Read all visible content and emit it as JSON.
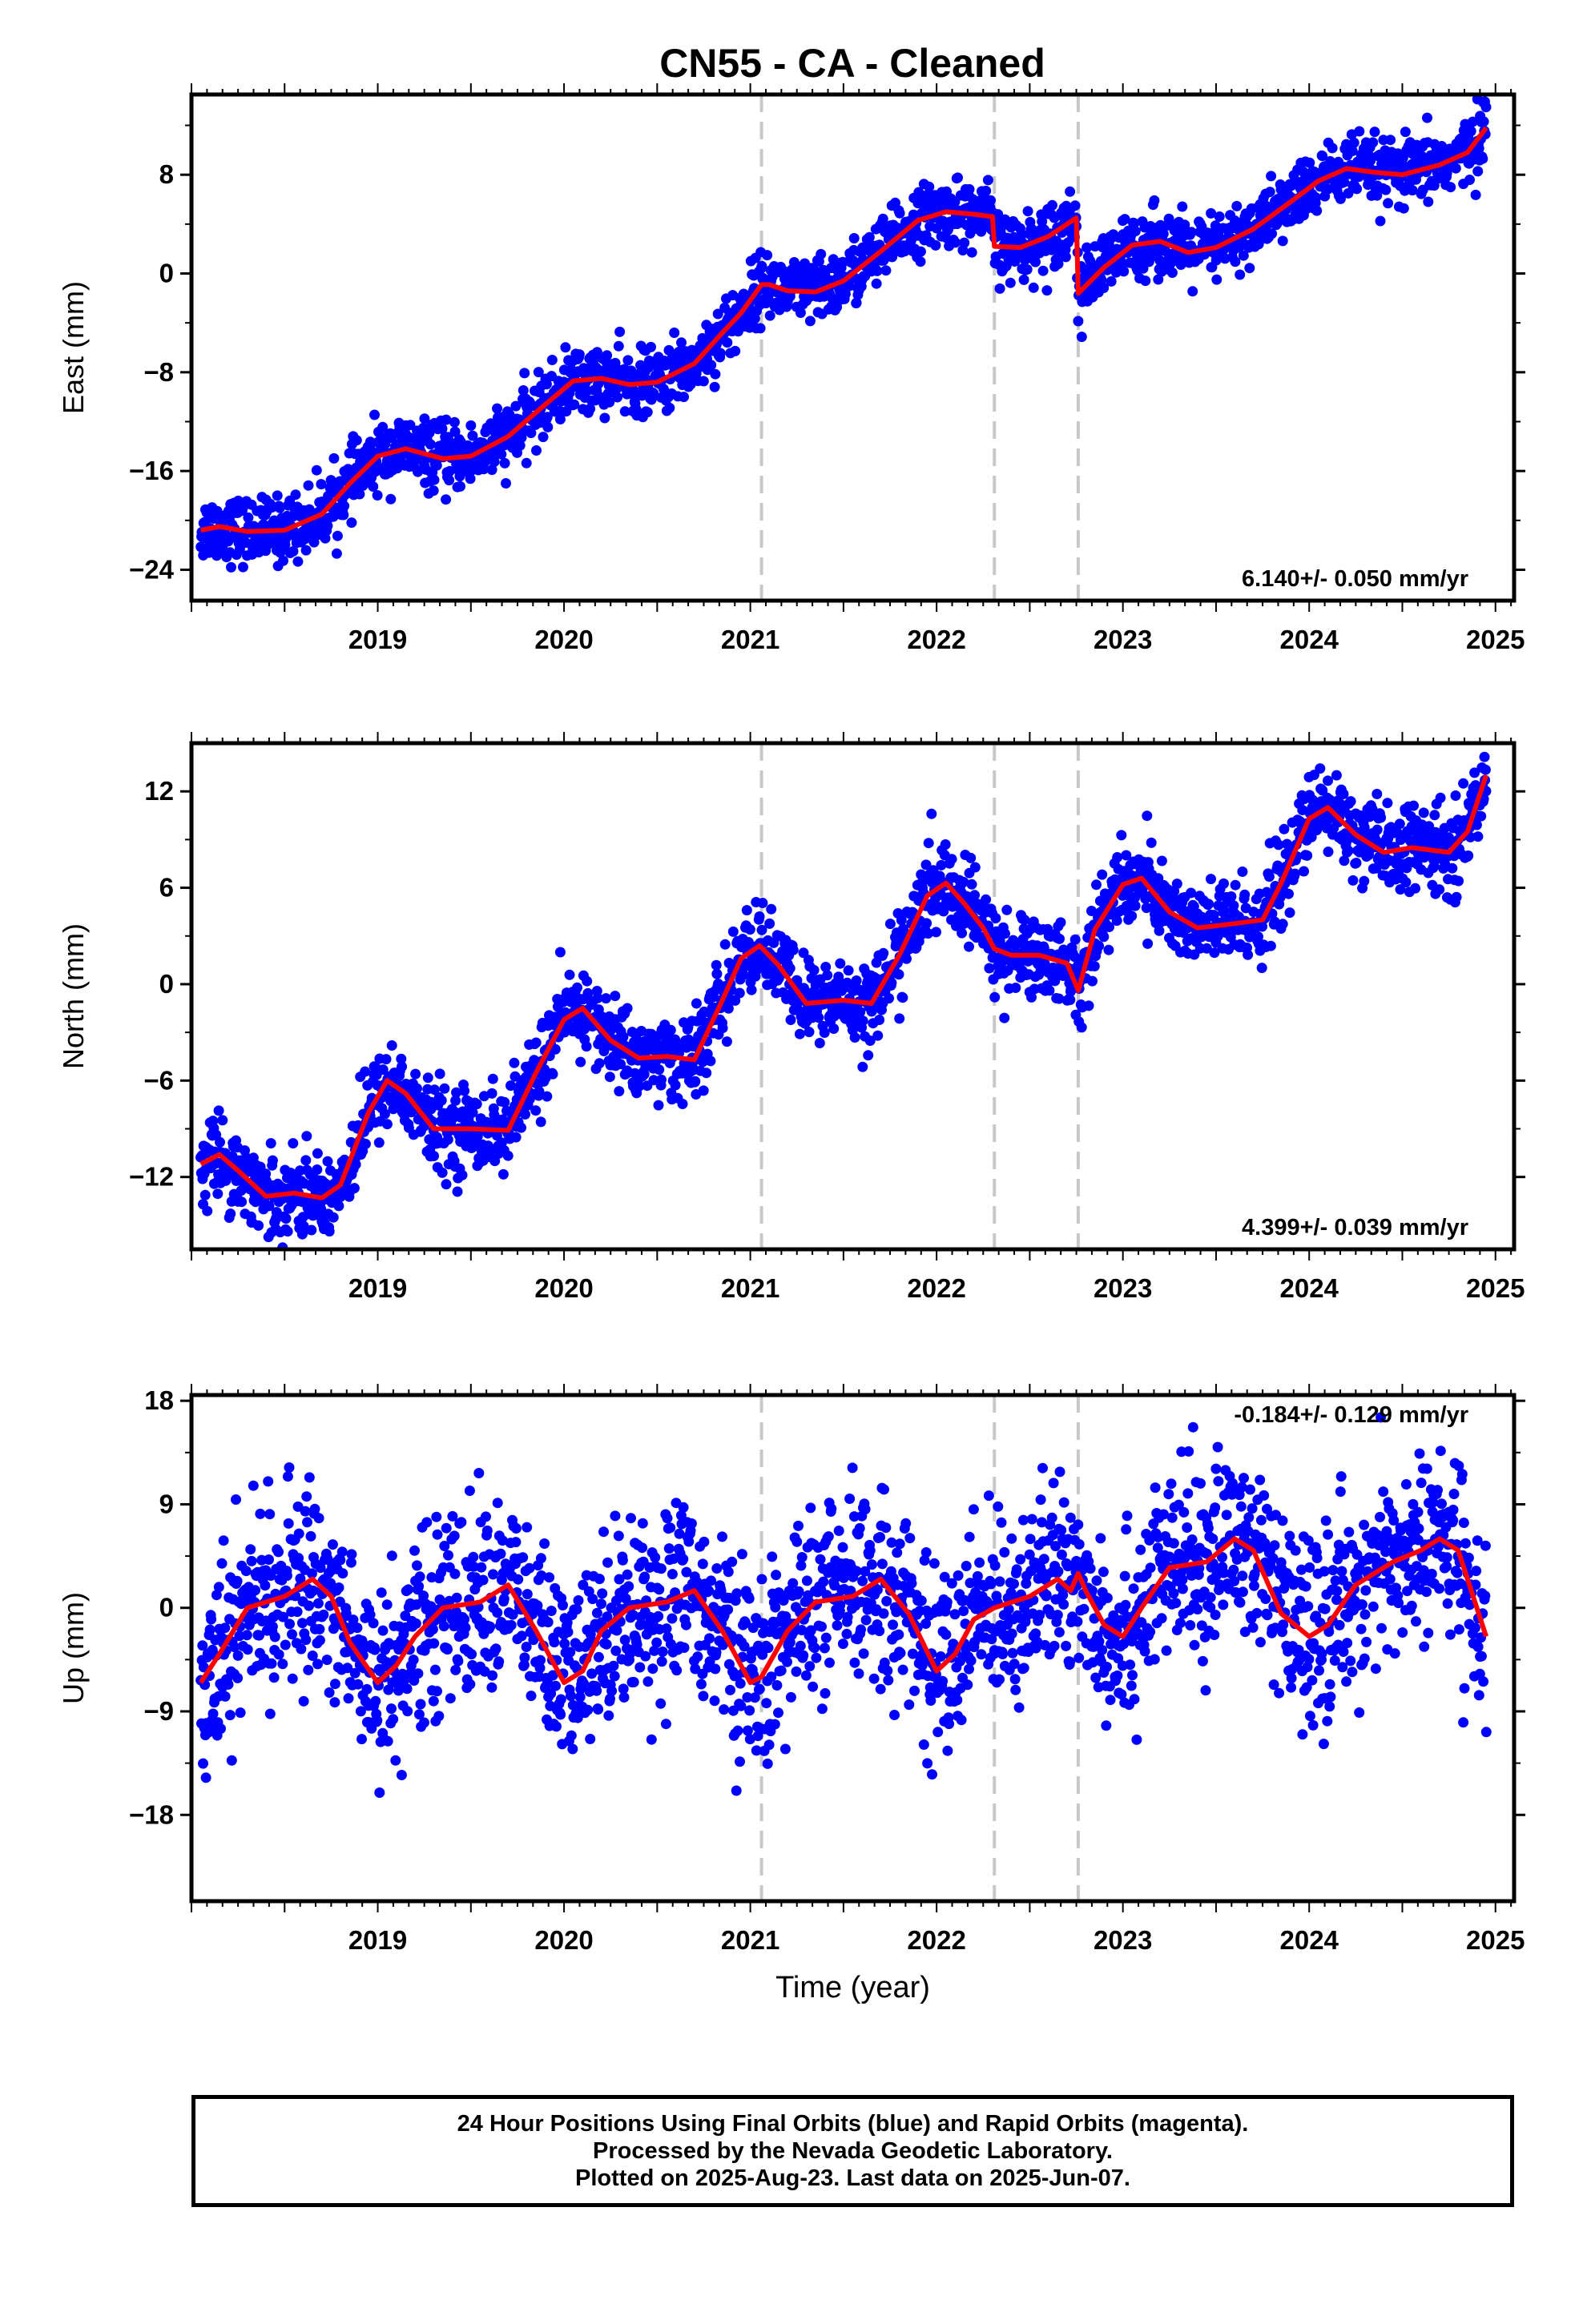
{
  "title": "CN55  - CA - Cleaned",
  "colors": {
    "data": "#0000ff",
    "model": "#ff0000",
    "steps": "#c8c8c8",
    "frame": "#000000"
  },
  "chart_data": [
    {
      "type": "scatter",
      "component": "east",
      "ylabel": "East (mm)",
      "xlabel": "",
      "rate": "6.140+/- 0.050 mm/yr",
      "rate_position": "bottom-right",
      "xlim": [
        2018.5,
        2025.6
      ],
      "ylim": [
        -26.5,
        14.5
      ],
      "yticks": [
        -24,
        -16,
        -8,
        0,
        8
      ],
      "xticks": [
        2019,
        2020,
        2021,
        2022,
        2023,
        2024,
        2025
      ],
      "tick_labels": [
        "2019",
        "2020",
        "2021",
        "2022",
        "2023",
        "2024",
        "2025"
      ],
      "model": {
        "x": [
          2018.55,
          2018.65,
          2018.8,
          2019.0,
          2019.2,
          2019.35,
          2019.5,
          2019.65,
          2019.85,
          2020.0,
          2020.2,
          2020.4,
          2020.55,
          2020.7,
          2020.85,
          2021.0,
          2021.2,
          2021.35,
          2021.45,
          2021.56,
          2021.6,
          2021.7,
          2021.85,
          2022.0,
          2022.2,
          2022.4,
          2022.55,
          2022.7,
          2022.8,
          2022.81,
          2022.95,
          2023.1,
          2023.25,
          2023.26,
          2023.4,
          2023.55,
          2023.7,
          2023.85,
          2024.0,
          2024.2,
          2024.4,
          2024.55,
          2024.7,
          2024.85,
          2025.0,
          2025.2,
          2025.35,
          2025.45
        ],
        "y": [
          -20.8,
          -20.5,
          -20.9,
          -20.8,
          -19.5,
          -17.0,
          -14.8,
          -14.2,
          -15.0,
          -14.8,
          -13.2,
          -10.6,
          -8.7,
          -8.5,
          -9.0,
          -8.8,
          -7.3,
          -4.8,
          -3.2,
          -0.9,
          -0.9,
          -1.4,
          -1.5,
          -0.6,
          1.8,
          4.3,
          5.0,
          4.8,
          4.6,
          2.2,
          2.1,
          3.0,
          4.5,
          -1.6,
          0.5,
          2.3,
          2.6,
          1.7,
          2.1,
          3.6,
          5.8,
          7.5,
          8.5,
          8.2,
          8.0,
          8.8,
          9.8,
          11.8
        ]
      },
      "steps": [
        2021.56,
        2022.81,
        2023.26
      ],
      "scatter_sigma": 1.3
    },
    {
      "type": "scatter",
      "component": "north",
      "ylabel": "North (mm)",
      "xlabel": "",
      "rate": "4.399+/- 0.039 mm/yr",
      "rate_position": "bottom-right",
      "xlim": [
        2018.5,
        2025.6
      ],
      "ylim": [
        -16.5,
        15
      ],
      "yticks": [
        -12,
        -6,
        0,
        6,
        12
      ],
      "xticks": [
        2019,
        2020,
        2021,
        2022,
        2023,
        2024,
        2025
      ],
      "tick_labels": [
        "2019",
        "2020",
        "2021",
        "2022",
        "2023",
        "2024",
        "2025"
      ],
      "model": {
        "x": [
          2018.55,
          2018.65,
          2018.75,
          2018.9,
          2019.05,
          2019.2,
          2019.3,
          2019.45,
          2019.55,
          2019.65,
          2019.8,
          2020.0,
          2020.2,
          2020.35,
          2020.5,
          2020.6,
          2020.75,
          2020.9,
          2021.05,
          2021.2,
          2021.35,
          2021.45,
          2021.55,
          2021.65,
          2021.8,
          2022.0,
          2022.15,
          2022.3,
          2022.45,
          2022.55,
          2022.65,
          2022.75,
          2022.81,
          2022.9,
          2023.05,
          2023.2,
          2023.26,
          2023.35,
          2023.5,
          2023.6,
          2023.75,
          2023.9,
          2024.05,
          2024.25,
          2024.35,
          2024.5,
          2024.6,
          2024.75,
          2024.9,
          2025.05,
          2025.25,
          2025.35,
          2025.45
        ],
        "y": [
          -11.2,
          -10.6,
          -11.6,
          -13.2,
          -13.0,
          -13.3,
          -12.5,
          -8.0,
          -6.0,
          -6.8,
          -9.0,
          -9.0,
          -9.1,
          -5.5,
          -2.2,
          -1.5,
          -3.5,
          -4.6,
          -4.5,
          -4.7,
          -1.0,
          1.6,
          2.4,
          1.2,
          -1.2,
          -1.0,
          -1.2,
          1.8,
          5.5,
          6.3,
          5.0,
          3.5,
          2.2,
          1.8,
          1.8,
          1.3,
          -0.4,
          3.4,
          6.2,
          6.6,
          4.5,
          3.5,
          3.7,
          4.0,
          6.3,
          10.3,
          11.0,
          9.3,
          8.2,
          8.5,
          8.2,
          9.5,
          13.0
        ]
      },
      "steps": [
        2021.56,
        2022.81,
        2023.26
      ],
      "scatter_sigma": 1.3
    },
    {
      "type": "scatter",
      "component": "up",
      "ylabel": "Up (mm)",
      "xlabel": "Time (year)",
      "rate": "-0.184+/- 0.129 mm/yr",
      "rate_position": "top-right",
      "xlim": [
        2018.5,
        2025.6
      ],
      "ylim": [
        -25.5,
        18.5
      ],
      "yticks": [
        -18,
        -9,
        0,
        9,
        18
      ],
      "xticks": [
        2019,
        2020,
        2021,
        2022,
        2023,
        2024,
        2025
      ],
      "tick_labels": [
        "2019",
        "2020",
        "2021",
        "2022",
        "2023",
        "2024",
        "2025"
      ],
      "model": {
        "x": [
          2018.55,
          2018.65,
          2018.8,
          2019.0,
          2019.15,
          2019.25,
          2019.35,
          2019.5,
          2019.6,
          2019.7,
          2019.85,
          2020.05,
          2020.2,
          2020.35,
          2020.5,
          2020.6,
          2020.7,
          2020.85,
          2021.05,
          2021.2,
          2021.35,
          2021.5,
          2021.56,
          2021.7,
          2021.85,
          2022.05,
          2022.2,
          2022.35,
          2022.5,
          2022.6,
          2022.7,
          2022.81,
          2023.0,
          2023.15,
          2023.22,
          2023.26,
          2023.3,
          2023.4,
          2023.5,
          2023.6,
          2023.75,
          2023.95,
          2024.1,
          2024.2,
          2024.35,
          2024.5,
          2024.6,
          2024.75,
          2024.95,
          2025.1,
          2025.2,
          2025.3,
          2025.45
        ],
        "y": [
          -6.5,
          -4.0,
          0.0,
          1.0,
          2.5,
          1.0,
          -3.0,
          -6.5,
          -5.0,
          -2.5,
          0.0,
          0.5,
          2.0,
          -2.0,
          -6.5,
          -5.5,
          -2.0,
          0.0,
          0.5,
          1.5,
          -2.0,
          -6.5,
          -6.0,
          -2.0,
          0.5,
          1.0,
          2.5,
          -0.5,
          -5.5,
          -4.0,
          -1.0,
          0.0,
          1.0,
          2.5,
          1.5,
          3.0,
          1.5,
          -1.5,
          -2.5,
          0.0,
          3.5,
          4.0,
          6.0,
          5.0,
          -0.5,
          -2.5,
          -1.5,
          2.0,
          4.0,
          5.0,
          6.0,
          5.0,
          -2.5
        ]
      },
      "steps": [
        2021.56,
        2022.81,
        2023.26
      ],
      "scatter_sigma": 4.0
    }
  ],
  "footer": {
    "line1": "24 Hour Positions Using Final Orbits (blue) and Rapid Orbits (magenta).",
    "line2": "Processed by the Nevada Geodetic Laboratory.",
    "line3": "Plotted on 2025-Aug-23. Last data on 2025-Jun-07."
  }
}
